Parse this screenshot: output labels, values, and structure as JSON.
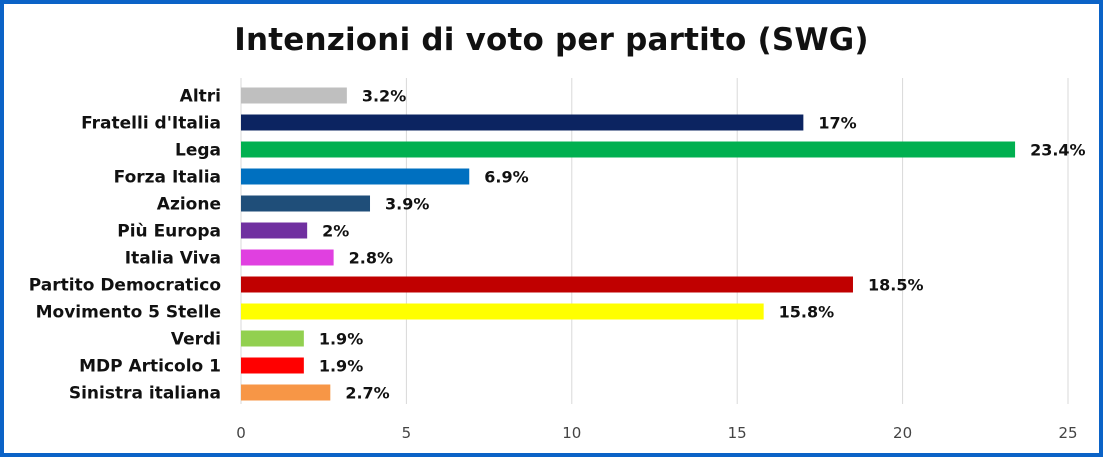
{
  "chart_data": {
    "type": "bar",
    "orientation": "horizontal",
    "title": "Intenzioni di voto per partito (SWG)",
    "categories": [
      "Altri",
      "Fratelli d'Italia",
      "Lega",
      "Forza Italia",
      "Azione",
      "Più Europa",
      "Italia Viva",
      "Partito Democratico",
      "Movimento 5 Stelle",
      "Verdi",
      "MDP Articolo 1",
      "Sinistra italiana"
    ],
    "values": [
      3.2,
      17,
      23.4,
      6.9,
      3.9,
      2,
      2.8,
      18.5,
      15.8,
      1.9,
      1.9,
      2.7
    ],
    "data_labels": [
      "3.2%",
      "17%",
      "23.4%",
      "6.9%",
      "3.9%",
      "2%",
      "2.8%",
      "18.5%",
      "15.8%",
      "1.9%",
      "1.9%",
      "2.7%"
    ],
    "colors": [
      "#bfbfbf",
      "#0c2461",
      "#00b050",
      "#0070c0",
      "#1f4e79",
      "#7030a0",
      "#e040e0",
      "#c00000",
      "#ffff00",
      "#92d050",
      "#ff0000",
      "#f79646"
    ],
    "xlim": [
      0,
      25
    ],
    "xticks": [
      "0",
      "5",
      "10",
      "15",
      "20",
      "25"
    ],
    "xtick_values": [
      0,
      5,
      10,
      15,
      20,
      25
    ],
    "grid": true,
    "legend": "none",
    "border_color": "#0b63c7"
  }
}
